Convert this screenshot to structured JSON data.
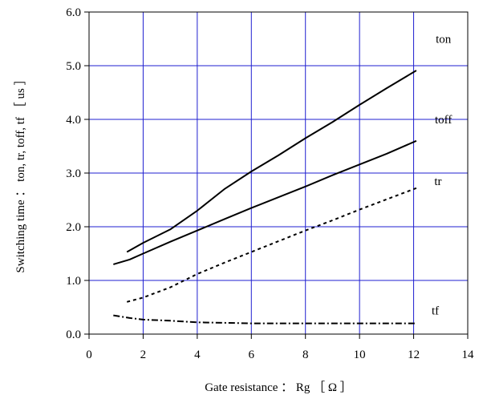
{
  "chart_data": {
    "type": "line",
    "title": "",
    "xlabel": "Gate resistance ： Rg ［ Ω ］",
    "ylabel": "Switching time ： ton, tr, toff, tf ［ us ］",
    "xlim": [
      0,
      14
    ],
    "ylim": [
      0.0,
      6.0
    ],
    "x_ticks": [
      "0",
      "2",
      "4",
      "6",
      "8",
      "10",
      "12",
      "14"
    ],
    "y_ticks": [
      "0.0",
      "1.0",
      "2.0",
      "3.0",
      "4.0",
      "5.0",
      "6.0"
    ],
    "grid": true,
    "grid_color": "#1f1fd0",
    "series": [
      {
        "name": "ton",
        "style": "solid",
        "x": [
          1.4,
          2,
          3,
          4,
          5,
          6,
          7,
          8,
          9,
          10,
          11,
          12.1
        ],
        "y": [
          1.53,
          1.7,
          1.95,
          2.3,
          2.7,
          3.03,
          3.33,
          3.65,
          3.95,
          4.27,
          4.58,
          4.91
        ]
      },
      {
        "name": "toff",
        "style": "solid",
        "x": [
          0.9,
          1.5,
          2,
          3,
          4,
          5,
          6,
          7,
          8,
          9,
          10,
          11,
          12.1
        ],
        "y": [
          1.3,
          1.39,
          1.5,
          1.72,
          1.93,
          2.14,
          2.35,
          2.55,
          2.75,
          2.96,
          3.16,
          3.36,
          3.6
        ]
      },
      {
        "name": "tr",
        "style": "dashed",
        "x": [
          1.4,
          2,
          3,
          4,
          5,
          6,
          7,
          8,
          9,
          10,
          11,
          12.1
        ],
        "y": [
          0.6,
          0.68,
          0.87,
          1.12,
          1.33,
          1.53,
          1.73,
          1.93,
          2.12,
          2.32,
          2.51,
          2.72
        ]
      },
      {
        "name": "tf",
        "style": "dashdot",
        "x": [
          0.9,
          1.5,
          2,
          3,
          4,
          5,
          6,
          7,
          8,
          9,
          10,
          11,
          12.1
        ],
        "y": [
          0.35,
          0.3,
          0.27,
          0.25,
          0.22,
          0.21,
          0.2,
          0.2,
          0.2,
          0.2,
          0.2,
          0.2,
          0.2
        ]
      }
    ],
    "series_labels": [
      {
        "text": "ton",
        "x": 13.1,
        "y": 5.5
      },
      {
        "text": "toff",
        "x": 13.1,
        "y": 4.0
      },
      {
        "text": "tr",
        "x": 12.9,
        "y": 2.85
      },
      {
        "text": "tf",
        "x": 12.8,
        "y": 0.44
      }
    ]
  }
}
